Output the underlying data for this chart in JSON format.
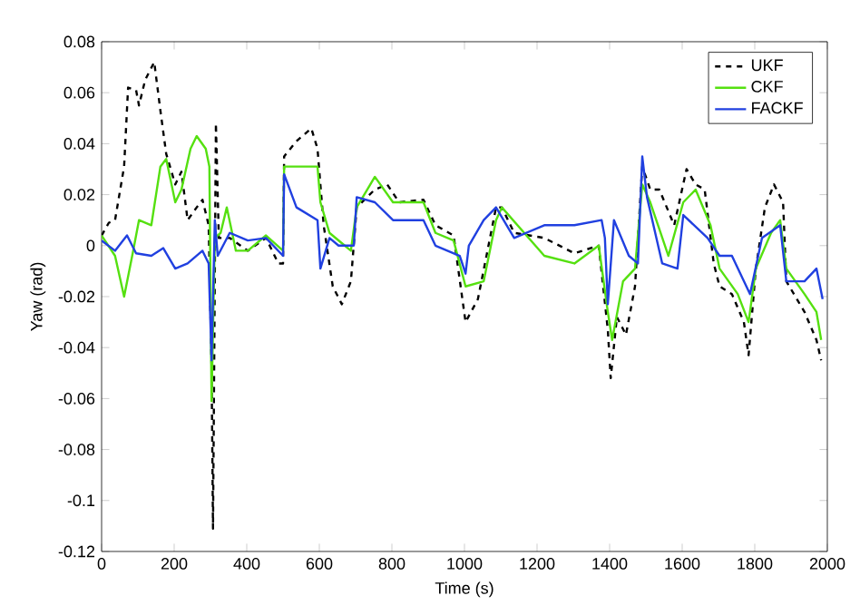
{
  "chart_data": {
    "type": "line",
    "xlabel": "Time (s)",
    "ylabel": "Yaw (rad)",
    "xlim": [
      0,
      2000
    ],
    "ylim": [
      -0.12,
      0.08
    ],
    "xticks": [
      0,
      200,
      400,
      600,
      800,
      1000,
      1200,
      1400,
      1600,
      1800,
      2000
    ],
    "yticks": [
      -0.12,
      -0.1,
      -0.08,
      -0.06,
      -0.04,
      -0.02,
      0,
      0.02,
      0.04,
      0.06,
      0.08
    ],
    "legend": "top right",
    "series": [
      {
        "name": "UKF",
        "color": "#000000",
        "line_style": "dashed",
        "x": [
          0,
          20,
          37,
          62,
          73,
          95,
          103,
          120,
          145,
          162,
          178,
          203,
          220,
          237,
          262,
          278,
          295,
          303,
          307,
          315,
          323,
          353,
          403,
          453,
          487,
          500,
          503,
          537,
          578,
          595,
          612,
          637,
          662,
          687,
          703,
          753,
          787,
          820,
          887,
          920,
          970,
          1003,
          1037,
          1087,
          1103,
          1137,
          1220,
          1303,
          1370,
          1395,
          1403,
          1420,
          1445,
          1470,
          1490,
          1512,
          1537,
          1578,
          1612,
          1637,
          1662,
          1687,
          1703,
          1737,
          1770,
          1783,
          1803,
          1828,
          1853,
          1878,
          1887,
          1937,
          1970,
          1983
        ],
        "values": [
          0.004,
          0.009,
          0.01,
          0.031,
          0.062,
          0.061,
          0.055,
          0.065,
          0.072,
          0.053,
          0.036,
          0.024,
          0.029,
          0.01,
          0.015,
          0.018,
          0.008,
          -0.047,
          -0.111,
          0.048,
          0.003,
          0.003,
          -0.002,
          0.003,
          -0.007,
          -0.007,
          0.035,
          0.041,
          0.046,
          0.038,
          0.008,
          -0.016,
          -0.023,
          -0.014,
          0.015,
          0.022,
          0.024,
          0.017,
          0.018,
          0.008,
          0.004,
          -0.03,
          -0.021,
          0.015,
          0.015,
          0.005,
          0.003,
          -0.003,
          0.0,
          -0.033,
          -0.052,
          -0.028,
          -0.035,
          -0.016,
          0.031,
          0.022,
          0.022,
          0.008,
          0.03,
          0.024,
          0.022,
          -0.007,
          -0.016,
          -0.019,
          -0.03,
          -0.043,
          -0.009,
          0.015,
          0.024,
          0.017,
          -0.014,
          -0.026,
          -0.037,
          -0.045
        ]
      },
      {
        "name": "CKF",
        "color": "#55e010",
        "line_style": "solid",
        "x": [
          0,
          37,
          62,
          87,
          103,
          137,
          162,
          178,
          203,
          220,
          245,
          262,
          287,
          297,
          303,
          312,
          328,
          345,
          370,
          403,
          453,
          500,
          503,
          537,
          595,
          603,
          628,
          670,
          687,
          703,
          753,
          803,
          887,
          920,
          970,
          1003,
          1053,
          1087,
          1103,
          1220,
          1303,
          1370,
          1395,
          1407,
          1437,
          1470,
          1490,
          1512,
          1562,
          1603,
          1637,
          1678,
          1703,
          1753,
          1783,
          1803,
          1845,
          1870,
          1887,
          1937,
          1970,
          1983
        ],
        "values": [
          0.004,
          -0.004,
          -0.02,
          -0.002,
          0.01,
          0.008,
          0.031,
          0.034,
          0.017,
          0.022,
          0.038,
          0.043,
          0.038,
          0.031,
          -0.061,
          0.003,
          0.005,
          0.015,
          -0.002,
          -0.002,
          0.004,
          -0.002,
          0.031,
          0.031,
          0.031,
          0.017,
          0.005,
          0.0,
          -0.002,
          0.015,
          0.027,
          0.017,
          0.017,
          0.005,
          0.002,
          -0.016,
          -0.014,
          0.01,
          0.015,
          -0.004,
          -0.007,
          0.0,
          -0.026,
          -0.037,
          -0.014,
          -0.009,
          0.024,
          0.017,
          -0.004,
          0.017,
          0.022,
          0.008,
          -0.009,
          -0.019,
          -0.03,
          -0.009,
          0.005,
          0.01,
          -0.009,
          -0.019,
          -0.026,
          -0.037
        ]
      },
      {
        "name": "FACKF",
        "color": "#2040e0",
        "line_style": "solid",
        "x": [
          0,
          37,
          70,
          95,
          137,
          170,
          203,
          237,
          278,
          295,
          303,
          312,
          320,
          353,
          403,
          453,
          500,
          503,
          537,
          595,
          603,
          628,
          653,
          695,
          703,
          753,
          803,
          887,
          920,
          987,
          1003,
          1012,
          1053,
          1087,
          1137,
          1220,
          1303,
          1378,
          1387,
          1395,
          1412,
          1453,
          1478,
          1490,
          1503,
          1545,
          1587,
          1603,
          1670,
          1703,
          1737,
          1787,
          1820,
          1870,
          1887,
          1937,
          1970,
          1987
        ],
        "values": [
          0.002,
          -0.002,
          0.004,
          -0.003,
          -0.004,
          -0.001,
          -0.009,
          -0.007,
          -0.002,
          -0.007,
          -0.045,
          0.01,
          -0.004,
          0.005,
          0.002,
          0.003,
          -0.004,
          0.028,
          0.015,
          0.01,
          -0.009,
          0.003,
          0.0,
          0.0,
          0.019,
          0.017,
          0.01,
          0.01,
          0.0,
          -0.004,
          -0.011,
          0.0,
          0.01,
          0.015,
          0.003,
          0.008,
          0.008,
          0.01,
          0.003,
          -0.023,
          0.01,
          -0.004,
          -0.007,
          0.035,
          0.019,
          -0.007,
          -0.009,
          0.012,
          0.003,
          -0.004,
          -0.004,
          -0.019,
          0.003,
          0.008,
          -0.014,
          -0.014,
          -0.009,
          -0.021
        ]
      }
    ]
  }
}
